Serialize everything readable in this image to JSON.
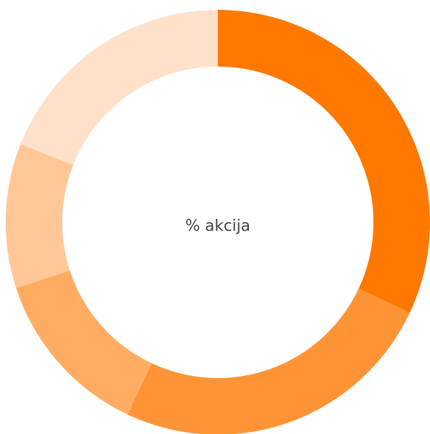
{
  "chart_data": {
    "type": "donut",
    "title": "% akcija",
    "values": [
      32,
      25,
      13,
      11,
      19
    ],
    "colors": [
      "#ff7800",
      "#ff9436",
      "#ffac63",
      "#ffc797",
      "#ffe1ca"
    ]
  }
}
